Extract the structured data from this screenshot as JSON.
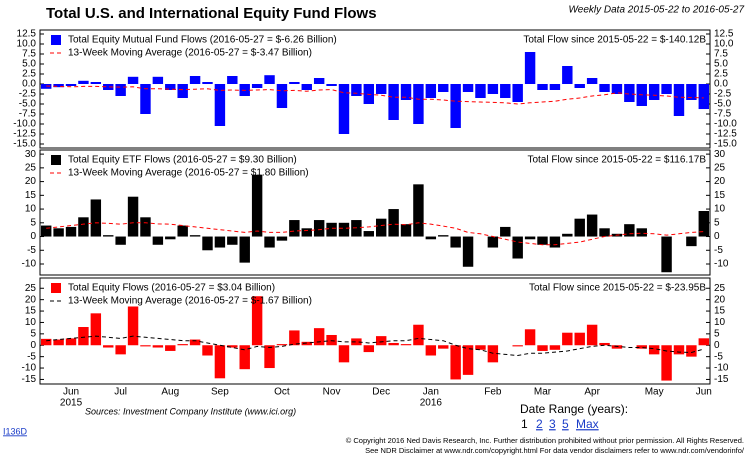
{
  "header": {
    "title": "Total U.S. and International Equity Fund Flows",
    "date_range": "Weekly Data 2015-05-22 to 2016-05-27"
  },
  "chart_data": [
    {
      "type": "bar",
      "annotation": "Total Flow since 2015-05-22 = $-140.12B",
      "ylim": [
        -16,
        13.5
      ],
      "yticks": [
        12.5,
        {
          "value": 10,
          "label": "10.0"
        },
        7.5,
        {
          "value": 5,
          "label": "5.0"
        },
        2.5,
        {
          "value": 0,
          "label": "0.0"
        },
        -2.5,
        {
          "value": -5,
          "label": "-5.0"
        },
        -7.5,
        {
          "value": -10,
          "label": "-10.0"
        },
        -12.5,
        {
          "value": -15,
          "label": "-15.0"
        }
      ],
      "series": [
        {
          "name": "Total Equity Mutual Fund Flows (2016-05-27 = $-6.26 Billion)",
          "color": "#0000ff",
          "values": [
            -1.2,
            -0.8,
            -0.5,
            0.8,
            0.5,
            -1.5,
            -3,
            1.8,
            -7.5,
            1.8,
            -1.5,
            -3.5,
            2,
            0.5,
            -10.5,
            2,
            -3,
            -1,
            2.2,
            -6,
            0.5,
            -1.5,
            1.5,
            -0.5,
            -12.5,
            -3,
            -5,
            -2.5,
            -9,
            -4,
            -10,
            -3.5,
            -2,
            -11,
            -2,
            -3.5,
            -2.5,
            -3.5,
            -4.5,
            8,
            -1.5,
            -1.5,
            4.5,
            -1,
            1.5,
            -2,
            -2.5,
            -4.5,
            -5.5,
            -4,
            -2.5,
            -8,
            -4,
            -6.26
          ]
        },
        {
          "name": "13-Week Moving Average (2016-05-27 = $-3.47 Billion)",
          "type": "line",
          "dashed": true,
          "color": "#ff0000",
          "values": [
            -0.5,
            -0.6,
            -0.7,
            -0.6,
            -0.6,
            -0.7,
            -0.8,
            -0.7,
            -1.2,
            -1.2,
            -1.3,
            -1.4,
            -1.3,
            -1.2,
            -1.6,
            -1.5,
            -1.6,
            -1.5,
            -1.4,
            -1.7,
            -1.6,
            -1.8,
            -1.5,
            -1.4,
            -2.2,
            -2.3,
            -2.6,
            -2.8,
            -3.3,
            -3.3,
            -3.8,
            -3.8,
            -4,
            -4.3,
            -4.4,
            -4.5,
            -4.6,
            -4.7,
            -5,
            -4.7,
            -4.5,
            -4.3,
            -3.8,
            -3.5,
            -3,
            -2.7,
            -2.2,
            -2.5,
            -2.7,
            -2.8,
            -3,
            -3.3,
            -3.4,
            -3.47
          ]
        }
      ]
    },
    {
      "type": "bar",
      "annotation": "Total Flow since 2015-05-22 = $116.17B",
      "ylim": [
        -14,
        31.5
      ],
      "yticks": [
        30,
        25,
        20,
        15,
        10,
        5,
        0,
        -5,
        -10
      ],
      "series": [
        {
          "name": "Total Equity ETF Flows (2016-05-27 = $9.30 Billion)",
          "color": "#000000",
          "values": [
            4,
            3,
            3.5,
            7,
            13.5,
            0.5,
            -3,
            14.5,
            7,
            -3,
            -1,
            4,
            0.5,
            -5,
            -4,
            -3,
            -9.5,
            22.5,
            -4,
            -1.5,
            6,
            3,
            6,
            5,
            5,
            6,
            2,
            6.5,
            10,
            4.5,
            19,
            -1,
            0.5,
            -4,
            -11,
            0,
            -4,
            3.5,
            -8,
            -1,
            -3,
            -4,
            1,
            6.5,
            8,
            3,
            1,
            4.5,
            3,
            0,
            -13,
            0,
            -3.5,
            9.3
          ]
        },
        {
          "name": "13-Week Moving Average (2016-05-27 = $1.80 Billion)",
          "type": "line",
          "dashed": true,
          "color": "#ff0000",
          "values": [
            3,
            3.5,
            4,
            4.5,
            5,
            4.8,
            4.5,
            5,
            5,
            4.6,
            4.5,
            4,
            3.5,
            3,
            2.5,
            2,
            1.5,
            2,
            1.5,
            1.5,
            2,
            2.2,
            2.5,
            3,
            3,
            3.2,
            3.5,
            4,
            4.5,
            4.3,
            5,
            4.5,
            3.8,
            3,
            1.5,
            1,
            0,
            -1,
            -2,
            -2.5,
            -3,
            -3,
            -2.5,
            -2,
            -1,
            0,
            0.5,
            1,
            1.2,
            1,
            0.5,
            1,
            1.5,
            1.8
          ]
        }
      ]
    },
    {
      "type": "bar",
      "annotation": "Total Flow since 2015-05-22 = $-23.95B",
      "ylim": [
        -17,
        29.5
      ],
      "yticks": [
        25,
        20,
        15,
        10,
        5,
        0,
        -5,
        -10,
        -15
      ],
      "categories": [
        null,
        null,
        "Jun",
        null,
        null,
        null,
        "Jul",
        null,
        null,
        null,
        "Aug",
        null,
        null,
        null,
        "Sep",
        null,
        null,
        null,
        null,
        "Oct",
        null,
        null,
        null,
        "Nov",
        null,
        null,
        null,
        "Dec",
        null,
        null,
        null,
        "Jan",
        null,
        null,
        null,
        null,
        "Feb",
        null,
        null,
        null,
        "Mar",
        null,
        null,
        null,
        "Apr",
        null,
        null,
        null,
        null,
        "May",
        null,
        null,
        null,
        "Jun"
      ],
      "year_labels": [
        null,
        null,
        "2015",
        null,
        null,
        null,
        null,
        null,
        null,
        null,
        null,
        null,
        null,
        null,
        null,
        null,
        null,
        null,
        null,
        null,
        null,
        null,
        null,
        null,
        null,
        null,
        null,
        null,
        null,
        null,
        null,
        "2016",
        null,
        null,
        null,
        null,
        null,
        null,
        null,
        null,
        null,
        null,
        null,
        null,
        null,
        null,
        null,
        null,
        null,
        null,
        null,
        null,
        null,
        null
      ],
      "series": [
        {
          "name": "Total Equity Flows (2016-05-27 = $3.04 Billion)",
          "color": "#ff0000",
          "values": [
            2.8,
            2.5,
            3,
            8,
            14,
            -1,
            -4,
            17,
            -0.5,
            -1,
            -2.5,
            0.5,
            2.5,
            -4.5,
            -14.5,
            -1,
            -10.5,
            21.5,
            -10,
            0.5,
            6.5,
            1.5,
            7.5,
            4.5,
            -7.5,
            3,
            -3,
            4,
            1,
            0.5,
            9,
            -4.5,
            -1.5,
            -15,
            -13,
            -2,
            -7.5,
            0,
            -0.5,
            7,
            -2.5,
            -2,
            5.5,
            5.5,
            9,
            1,
            -1.5,
            0,
            -1.5,
            -4,
            -15.5,
            -4,
            -5,
            3.04
          ]
        },
        {
          "name": "13-Week Moving Average (2016-05-27 = $-1.67 Billion)",
          "type": "line",
          "dashed": true,
          "color": "#000000",
          "values": [
            2,
            2.5,
            3,
            3.5,
            4,
            3.5,
            3,
            4,
            3.5,
            3,
            2.5,
            2,
            2,
            1,
            0,
            -1,
            -2,
            -0.5,
            -1,
            -0.5,
            0.5,
            1,
            1.5,
            2,
            1.5,
            1.5,
            1,
            1.5,
            2,
            2,
            3,
            2.5,
            2,
            0,
            -1.5,
            -2,
            -3.5,
            -4,
            -4.5,
            -3.5,
            -3.5,
            -3,
            -2.5,
            -1.5,
            -0.5,
            0,
            -0.5,
            -1,
            -1,
            -1.5,
            -2.5,
            -3,
            -3.2,
            -1.67
          ]
        }
      ]
    }
  ],
  "footer": {
    "sources": "Sources: Investment Company Institute (www.ici.org)",
    "date_range_label": "Date Range (years):",
    "date_range_options": [
      "1",
      "2",
      "3",
      "5",
      "Max"
    ],
    "code": "I136D",
    "copyright": "© Copyright 2016 Ned Davis Research, Inc. Further distribution prohibited without prior permission. All Rights Reserved.",
    "disclaimer": "See NDR Disclaimer at www.ndr.com/copyright.html  For data vendor disclaimers refer to www.ndr.com/vendorinfo/"
  }
}
